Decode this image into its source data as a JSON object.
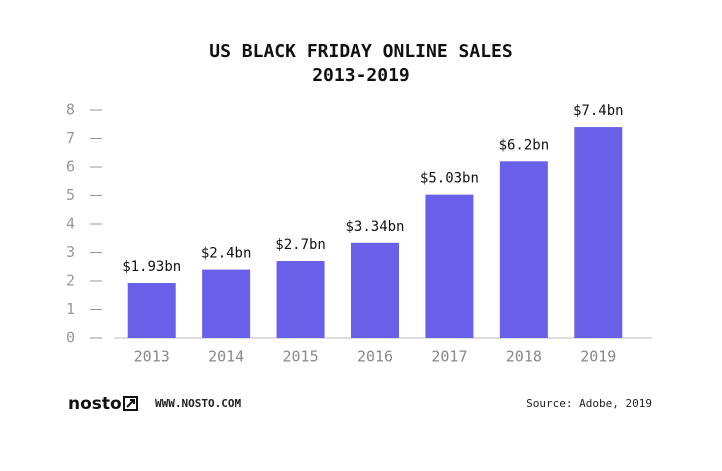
{
  "chart_data": {
    "type": "bar",
    "title": "US BLACK FRIDAY ONLINE SALES",
    "subtitle": "2013-2019",
    "categories": [
      "2013",
      "2014",
      "2015",
      "2016",
      "2017",
      "2018",
      "2019"
    ],
    "values": [
      1.93,
      2.4,
      2.7,
      3.34,
      5.03,
      6.2,
      7.4
    ],
    "value_labels": [
      "$1.93bn",
      "$2.4bn",
      "$2.7bn",
      "$3.34bn",
      "$5.03bn",
      "$6.2bn",
      "$7.4bn"
    ],
    "color": "#6a5fe8",
    "ylim": [
      0,
      8
    ],
    "yticks": [
      0,
      1,
      2,
      3,
      4,
      5,
      6,
      7,
      8
    ],
    "grid": false
  },
  "footer": {
    "brand": "nosto",
    "url": "WWW.NOSTO.COM",
    "source": "Source: Adobe, 2019"
  }
}
